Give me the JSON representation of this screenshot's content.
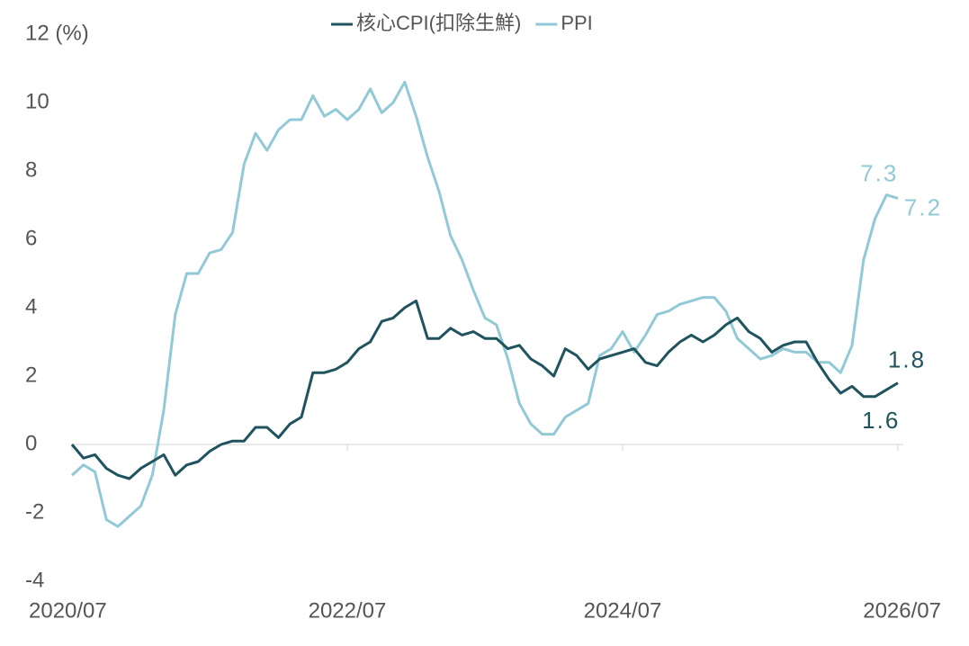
{
  "chart_data": {
    "type": "line",
    "x": [
      "2020/07",
      null,
      null,
      null,
      null,
      null,
      null,
      null,
      null,
      null,
      null,
      null,
      null,
      null,
      null,
      null,
      null,
      null,
      null,
      null,
      null,
      null,
      null,
      null,
      "2022/07",
      null,
      null,
      null,
      null,
      null,
      null,
      null,
      null,
      null,
      null,
      null,
      null,
      null,
      null,
      null,
      null,
      null,
      null,
      null,
      null,
      null,
      null,
      null,
      "2024/07",
      null,
      null,
      null,
      null,
      null,
      null,
      null,
      null,
      null,
      null,
      null,
      null,
      null,
      null,
      null,
      null,
      null,
      null,
      null,
      null,
      null,
      null,
      null,
      "2026/07"
    ],
    "series": [
      {
        "name": "核心CPI(扣除生鮮)",
        "color": "#1f535e",
        "labeled_points": [
          71,
          72
        ],
        "values": [
          0,
          -0.4,
          -0.3,
          -0.7,
          -0.9,
          -1.0,
          -0.7,
          -0.5,
          -0.3,
          -0.9,
          -0.6,
          -0.5,
          -0.2,
          0,
          0.1,
          0.1,
          0.5,
          0.5,
          0.2,
          0.6,
          0.8,
          2.1,
          2.1,
          2.2,
          2.4,
          2.8,
          3.0,
          3.6,
          3.7,
          4.0,
          4.2,
          3.1,
          3.1,
          3.4,
          3.2,
          3.3,
          3.1,
          3.1,
          2.8,
          2.9,
          2.5,
          2.3,
          2.0,
          2.8,
          2.6,
          2.2,
          2.5,
          2.6,
          2.7,
          2.8,
          2.4,
          2.3,
          2.7,
          3.0,
          3.2,
          3.0,
          3.2,
          3.5,
          3.7,
          3.3,
          3.1,
          2.7,
          2.9,
          3.0,
          3.0,
          2.4,
          1.9,
          1.5,
          1.7,
          1.4,
          1.4,
          1.6,
          1.8
        ]
      },
      {
        "name": "PPI",
        "color": "#92c9d6",
        "labeled_points": [
          71,
          72
        ],
        "values": [
          -0.9,
          -0.6,
          -0.8,
          -2.2,
          -2.4,
          -2.1,
          -1.8,
          -0.9,
          1.0,
          3.8,
          5.0,
          5.0,
          5.6,
          5.7,
          6.2,
          8.2,
          9.1,
          8.6,
          9.2,
          9.5,
          9.5,
          10.2,
          9.6,
          9.8,
          9.5,
          9.8,
          10.4,
          9.7,
          10.0,
          10.6,
          9.6,
          8.4,
          7.4,
          6.1,
          5.4,
          4.5,
          3.7,
          3.5,
          2.5,
          1.2,
          0.6,
          0.3,
          0.3,
          0.8,
          1.0,
          1.2,
          2.6,
          2.8,
          3.3,
          2.7,
          3.2,
          3.8,
          3.9,
          4.1,
          4.2,
          4.3,
          4.3,
          3.9,
          3.1,
          2.8,
          2.5,
          2.6,
          2.8,
          2.7,
          2.7,
          2.4,
          2.4,
          2.1,
          2.9,
          5.4,
          6.6,
          7.3,
          7.2
        ]
      }
    ],
    "ylim": [
      -4,
      12
    ],
    "yticks": [
      -4,
      -2,
      0,
      2,
      4,
      6,
      8,
      10,
      {
        "value": 12,
        "label": "12 (%)"
      }
    ],
    "legend": "top",
    "grid": false
  }
}
